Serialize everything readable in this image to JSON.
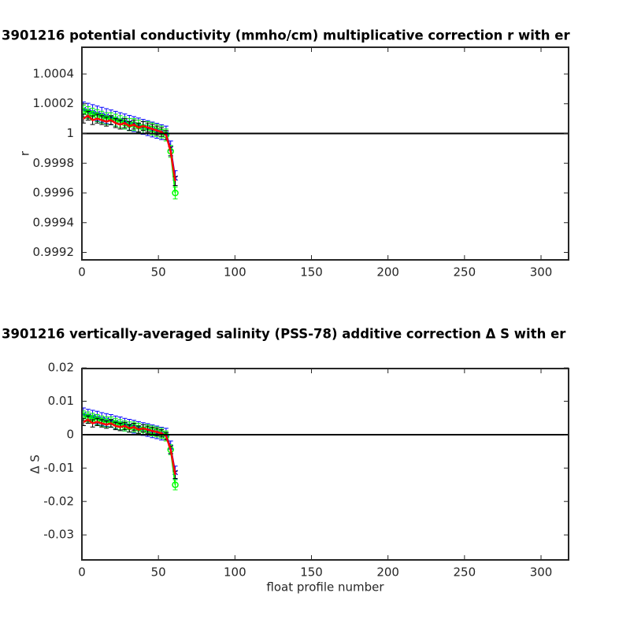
{
  "chart_data": [
    {
      "type": "line",
      "title": "3901216 potential conductivity (mmho/cm) multiplicative correction r with er",
      "ylabel": "r",
      "x": [
        1,
        4,
        7,
        10,
        13,
        16,
        19,
        22,
        25,
        28,
        31,
        34,
        37,
        40,
        43,
        46,
        49,
        52,
        55,
        58,
        61
      ],
      "xlim": [
        0,
        318
      ],
      "xticks": [
        0,
        50,
        100,
        150,
        200,
        250,
        300
      ],
      "ylim": [
        0.99915,
        1.00058
      ],
      "yticks": [
        0.9992,
        0.9994,
        0.9996,
        0.9998,
        1,
        1.0002,
        1.0004
      ],
      "hline": 1,
      "hline_color": "#000000",
      "series": [
        {
          "color": "#0000ff",
          "marker": "x",
          "values": [
            1.000162,
            1.000153,
            1.000144,
            1.000135,
            1.000126,
            1.000117,
            1.000108,
            1.000099,
            1.00009,
            1.000081,
            1.000072,
            1.000063,
            1.000054,
            1.000045,
            1.000036,
            1.000027,
            1.000018,
            1.000009,
            1.0,
            0.9999,
            0.9997
          ],
          "errors": [
            5e-05,
            5e-05,
            5e-05,
            5e-05,
            5e-05,
            5e-05,
            5e-05,
            5e-05,
            5e-05,
            5e-05,
            5e-05,
            5e-05,
            5e-05,
            5e-05,
            5e-05,
            5e-05,
            5e-05,
            5e-05,
            5e-05,
            5e-05,
            5e-05
          ]
        },
        {
          "color": "#00ff00",
          "marker": "o",
          "values": [
            1.00015,
            1.00014,
            1.00013,
            1.00012,
            1.00011,
            1.0001,
            1.0001,
            1.00009,
            1.00008,
            1.00007,
            1.00006,
            1.00006,
            1.00005,
            1.00004,
            1.00004,
            1.00003,
            1.00002,
            1.00001,
            0.99999,
            0.99988,
            0.9996
          ],
          "errors": [
            4e-05,
            4e-05,
            4e-05,
            4e-05,
            4e-05,
            4e-05,
            4e-05,
            4e-05,
            4e-05,
            4e-05,
            4e-05,
            4e-05,
            4e-05,
            4e-05,
            4e-05,
            4e-05,
            4e-05,
            4e-05,
            4e-05,
            4e-05,
            4e-05
          ]
        },
        {
          "color": "#ff0000",
          "error_color": "#000000",
          "values": [
            1.0001,
            1.00012,
            1.00009,
            1.0001,
            1.00009,
            1.00008,
            1.00009,
            1.00007,
            1.00006,
            1.00007,
            1.00005,
            1.00006,
            1.00004,
            1.00005,
            1.00004,
            1.00003,
            1.00002,
            1.00001,
            0.99999,
            0.99988,
            0.99968
          ],
          "errors": [
            3e-05,
            3e-05,
            3e-05,
            3e-05,
            3e-05,
            3e-05,
            3e-05,
            3e-05,
            3e-05,
            3e-05,
            3e-05,
            3e-05,
            3e-05,
            3e-05,
            3e-05,
            3e-05,
            3e-05,
            3e-05,
            3e-05,
            3e-05,
            3e-05
          ]
        }
      ]
    },
    {
      "type": "line",
      "title": "3901216 vertically-averaged salinity (PSS-78) additive correction Δ S with er",
      "ylabel": "Δ S",
      "xlabel": "float profile number",
      "x": [
        1,
        4,
        7,
        10,
        13,
        16,
        19,
        22,
        25,
        28,
        31,
        34,
        37,
        40,
        43,
        46,
        49,
        52,
        55,
        58,
        61
      ],
      "xlim": [
        0,
        318
      ],
      "xticks": [
        0,
        50,
        100,
        150,
        200,
        250,
        300
      ],
      "ylim": [
        -0.0375,
        0.0198
      ],
      "yticks": [
        -0.03,
        -0.02,
        -0.01,
        0,
        0.01,
        0.02
      ],
      "hline": 0,
      "hline_color": "#000000",
      "series": [
        {
          "color": "#0000ff",
          "marker": "x",
          "values": [
            0.0061,
            0.0057,
            0.0054,
            0.0051,
            0.0047,
            0.0044,
            0.0041,
            0.0037,
            0.0034,
            0.003,
            0.0027,
            0.0024,
            0.002,
            0.0017,
            0.0014,
            0.001,
            0.0007,
            0.0003,
            0,
            -0.0038,
            -0.0113
          ],
          "errors": [
            0.0019,
            0.0019,
            0.0019,
            0.0019,
            0.0019,
            0.0019,
            0.0019,
            0.0019,
            0.0019,
            0.0019,
            0.0019,
            0.0019,
            0.0019,
            0.0019,
            0.0019,
            0.0019,
            0.0019,
            0.0019,
            0.0019,
            0.0019,
            0.0019
          ]
        },
        {
          "color": "#00ff00",
          "marker": "o",
          "values": [
            0.0056,
            0.0053,
            0.0049,
            0.0045,
            0.0041,
            0.0038,
            0.0038,
            0.0034,
            0.003,
            0.0026,
            0.0023,
            0.0023,
            0.0019,
            0.0015,
            0.0015,
            0.0011,
            0.0008,
            0.0004,
            -0.0004,
            -0.0045,
            -0.015
          ],
          "errors": [
            0.0015,
            0.0015,
            0.0015,
            0.0015,
            0.0015,
            0.0015,
            0.0015,
            0.0015,
            0.0015,
            0.0015,
            0.0015,
            0.0015,
            0.0015,
            0.0015,
            0.0015,
            0.0015,
            0.0015,
            0.0015,
            0.0015,
            0.0015,
            0.0015
          ]
        },
        {
          "color": "#ff0000",
          "error_color": "#000000",
          "values": [
            0.0038,
            0.0045,
            0.0034,
            0.0038,
            0.0034,
            0.003,
            0.0034,
            0.0026,
            0.0023,
            0.0026,
            0.0019,
            0.0023,
            0.0015,
            0.0019,
            0.0015,
            0.0011,
            0.0008,
            0.0004,
            -0.0004,
            -0.0045,
            -0.012
          ],
          "errors": [
            0.0011,
            0.0011,
            0.0011,
            0.0011,
            0.0011,
            0.0011,
            0.0011,
            0.0011,
            0.0011,
            0.0011,
            0.0011,
            0.0011,
            0.0011,
            0.0011,
            0.0011,
            0.0011,
            0.0011,
            0.0011,
            0.0011,
            0.0011,
            0.0011
          ]
        }
      ]
    }
  ]
}
